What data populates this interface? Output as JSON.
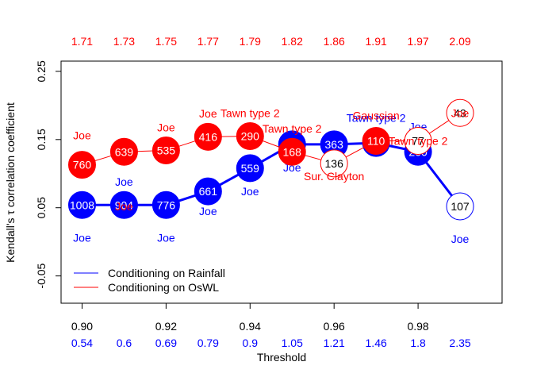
{
  "chart_data": {
    "type": "line",
    "xlabel": "Threshold",
    "ylabel": "Kendall's τ correlation coefficient",
    "xlim": [
      0.895,
      1.0
    ],
    "ylim": [
      -0.09,
      0.265
    ],
    "y_ticks": [
      -0.05,
      0.05,
      0.15,
      0.25
    ],
    "y_tick_labels": [
      "-0.05",
      "0.05",
      "0.15",
      "0.25"
    ],
    "x_ticks": [
      0.9,
      0.92,
      0.94,
      0.96,
      0.98
    ],
    "x_tick_labels": [
      "0.90",
      "0.92",
      "0.94",
      "0.96",
      "0.98"
    ],
    "x": [
      0.9,
      0.91,
      0.92,
      0.93,
      0.94,
      0.95,
      0.96,
      0.97,
      0.98,
      0.99
    ],
    "top_axis": {
      "color": "#ff0000",
      "labels": [
        "1.71",
        "1.73",
        "1.75",
        "1.77",
        "1.79",
        "1.82",
        "1.86",
        "1.91",
        "1.97",
        "2.09"
      ]
    },
    "bottom_axis2": {
      "color": "#0000ff",
      "labels": [
        "0.54",
        "0.6",
        "0.69",
        "0.79",
        "0.9",
        "1.05",
        "1.21",
        "1.46",
        "1.8",
        "2.35"
      ]
    },
    "series": [
      {
        "name": "Conditioning on Rainfall",
        "color": "#0000ff",
        "values": [
          0.054,
          0.054,
          0.054,
          0.074,
          0.108,
          0.143,
          0.143,
          0.145,
          0.132,
          0.052
        ],
        "counts": [
          "1008",
          "904",
          "776",
          "661",
          "559",
          "168",
          "363",
          "110",
          "200",
          "107"
        ],
        "copulas": [
          "Joe",
          "Joe",
          "Joe",
          "Joe",
          "Joe",
          "Joe",
          "Joe",
          "Tawn type 2",
          "Joe",
          "Joe"
        ],
        "filled": [
          true,
          true,
          true,
          true,
          true,
          true,
          true,
          true,
          true,
          false
        ],
        "copula_offsets": [
          -0.048,
          0.034,
          -0.048,
          -0.029,
          -0.034,
          -0.034,
          -0.034,
          0.037,
          0.037,
          -0.048
        ]
      },
      {
        "name": "Conditioning on OsWL",
        "color": "#ff0000",
        "values": [
          0.113,
          0.132,
          0.134,
          0.154,
          0.155,
          0.132,
          0.115,
          0.148,
          0.148,
          0.189
        ],
        "counts": [
          "760",
          "639",
          "535",
          "416",
          "290",
          "168",
          "136",
          "110",
          "77",
          "43"
        ],
        "copulas": [
          "Joe",
          "Joe",
          "Joe",
          "Joe",
          "Tawn type 2",
          "Tawn type 2",
          "Sur. Clayton",
          "Gaussian",
          "Tawn type 2",
          "Joe"
        ],
        "filled": [
          true,
          true,
          true,
          true,
          true,
          true,
          false,
          true,
          false,
          false
        ],
        "copula_offsets": [
          0.043,
          -0.08,
          0.034,
          0.034,
          0.034,
          0.034,
          -0.019,
          0.037,
          0.0,
          0.0
        ]
      }
    ],
    "legend": {
      "position": "bottom-left",
      "entries": [
        "Conditioning on Rainfall",
        "Conditioning on OsWL"
      ]
    },
    "grid": false
  }
}
